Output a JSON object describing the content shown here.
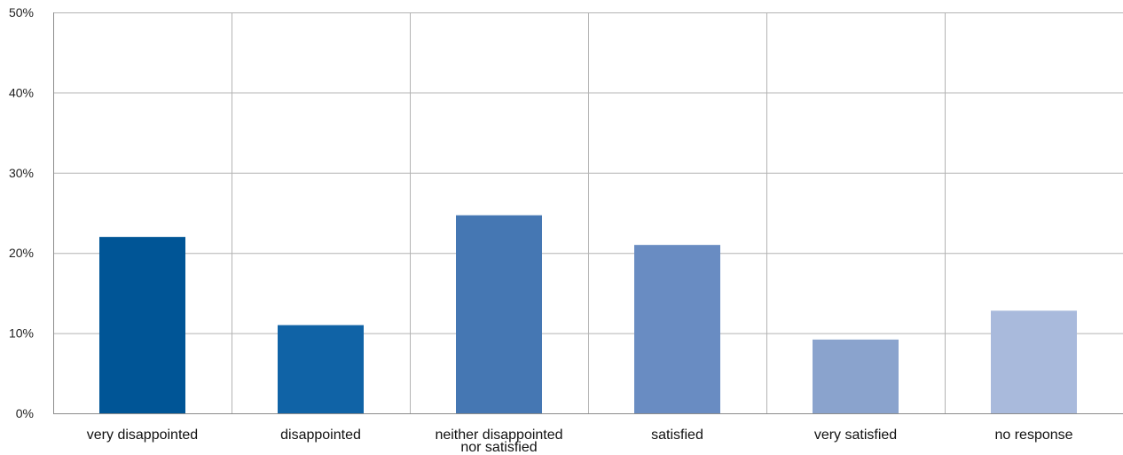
{
  "chart_data": {
    "type": "bar",
    "categories": [
      "very disappointed",
      "disappointed",
      "neither disappointed nor satisfied",
      "satisfied",
      "very satisfied",
      "no response"
    ],
    "values": [
      22,
      11,
      24.7,
      21,
      9.2,
      12.8
    ],
    "bar_colors": [
      "#005596",
      "#1063a6",
      "#4577b3",
      "#698cc2",
      "#8aa3cd",
      "#a9badc"
    ],
    "y_ticks": [
      "0%",
      "10%",
      "20%",
      "30%",
      "40%",
      "50%"
    ],
    "ylim": [
      0,
      50
    ],
    "grid": true,
    "legend": false,
    "title": "",
    "xlabel": "",
    "ylabel": ""
  }
}
